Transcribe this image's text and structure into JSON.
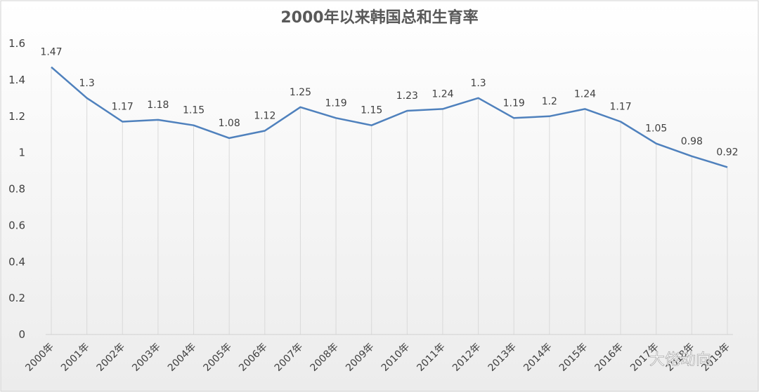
{
  "chart_data": {
    "type": "line",
    "title": "2000年以来韩国总和生育率",
    "categories": [
      "2000年",
      "2001年",
      "2002年",
      "2003年",
      "2004年",
      "2005年",
      "2006年",
      "2007年",
      "2008年",
      "2009年",
      "2010年",
      "2011年",
      "2012年",
      "2013年",
      "2014年",
      "2015年",
      "2016年",
      "2017年",
      "2018年",
      "2019年"
    ],
    "series": [
      {
        "values": [
          1.47,
          1.3,
          1.17,
          1.18,
          1.15,
          1.08,
          1.12,
          1.25,
          1.19,
          1.15,
          1.23,
          1.24,
          1.3,
          1.19,
          1.2,
          1.24,
          1.17,
          1.05,
          0.98,
          0.92
        ]
      }
    ],
    "ylim": [
      0,
      1.6
    ],
    "yticks": [
      "0",
      "0.2",
      "0.4",
      "0.6",
      "0.8",
      "1",
      "1.2",
      "1.4",
      "1.6"
    ],
    "xlabel": "",
    "ylabel": "",
    "grid": "vertical drop lines",
    "data_labels": true,
    "line_color": "#4f81bd"
  },
  "watermark": {
    "text": "大佬动向"
  }
}
